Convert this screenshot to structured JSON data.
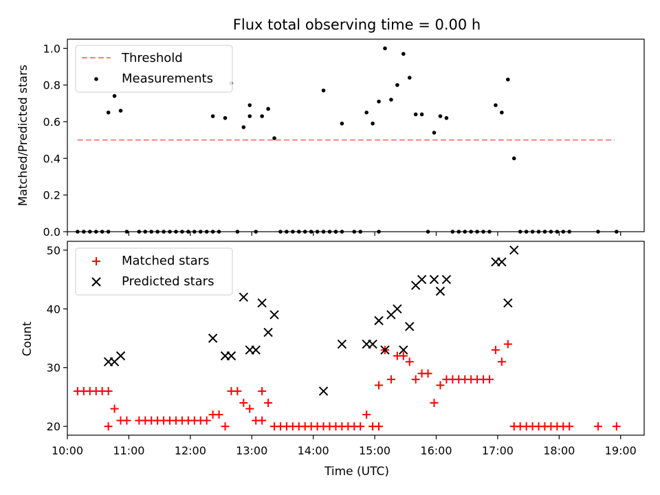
{
  "chart_data": [
    {
      "type": "scatter",
      "title": "Flux total observing time = 0.00 h",
      "xlabel": "",
      "ylabel": "Matched/Predicted stars",
      "xlim": [
        "10:00",
        "19:23"
      ],
      "ylim": [
        0,
        1.05
      ],
      "yticks": [
        0.0,
        0.2,
        0.4,
        0.6,
        0.8,
        1.0
      ],
      "ytick_labels": [
        "0.0",
        "0.2",
        "0.4",
        "0.6",
        "0.8",
        "1.0"
      ],
      "legend_position": "upper-left",
      "grid": false,
      "threshold": {
        "name": "Threshold",
        "y": 0.5,
        "x_range": [
          "10:10",
          "18:54"
        ],
        "color": "#ff7f7f",
        "style": "dashed"
      },
      "series": [
        {
          "name": "Measurements",
          "color": "#000000",
          "marker": "dot",
          "points": [
            [
              "10:10",
              0
            ],
            [
              "10:16",
              0
            ],
            [
              "10:22",
              0
            ],
            [
              "10:28",
              0
            ],
            [
              "10:34",
              0
            ],
            [
              "10:40",
              0
            ],
            [
              "10:40",
              0.65
            ],
            [
              "10:46",
              0.74
            ],
            [
              "10:52",
              0.66
            ],
            [
              "10:58",
              0
            ],
            [
              "11:10",
              0
            ],
            [
              "11:16",
              0
            ],
            [
              "11:22",
              0
            ],
            [
              "11:28",
              0
            ],
            [
              "11:34",
              0
            ],
            [
              "11:40",
              0
            ],
            [
              "11:46",
              0
            ],
            [
              "11:52",
              0
            ],
            [
              "11:58",
              0
            ],
            [
              "12:04",
              0
            ],
            [
              "12:10",
              0
            ],
            [
              "12:16",
              0
            ],
            [
              "12:22",
              0
            ],
            [
              "12:22",
              0.63
            ],
            [
              "12:28",
              0
            ],
            [
              "12:34",
              0.62
            ],
            [
              "12:40",
              0.81
            ],
            [
              "12:46",
              0
            ],
            [
              "12:52",
              0.57
            ],
            [
              "12:58",
              0.69
            ],
            [
              "12:58",
              0.63
            ],
            [
              "13:04",
              0
            ],
            [
              "13:10",
              0.63
            ],
            [
              "13:16",
              0.67
            ],
            [
              "13:22",
              0.51
            ],
            [
              "13:28",
              0
            ],
            [
              "13:34",
              0
            ],
            [
              "13:40",
              0
            ],
            [
              "13:46",
              0
            ],
            [
              "13:52",
              0
            ],
            [
              "13:58",
              0
            ],
            [
              "14:04",
              0
            ],
            [
              "14:10",
              0
            ],
            [
              "14:16",
              0
            ],
            [
              "14:22",
              0
            ],
            [
              "14:10",
              0.77
            ],
            [
              "14:22",
              0
            ],
            [
              "14:28",
              0
            ],
            [
              "14:28",
              0.59
            ],
            [
              "14:40",
              0
            ],
            [
              "14:46",
              0
            ],
            [
              "14:52",
              0.65
            ],
            [
              "14:58",
              0.59
            ],
            [
              "15:04",
              0
            ],
            [
              "15:04",
              0.71
            ],
            [
              "15:10",
              1.0
            ],
            [
              "15:16",
              0.72
            ],
            [
              "15:22",
              0.8
            ],
            [
              "15:28",
              0.97
            ],
            [
              "15:34",
              0.84
            ],
            [
              "15:40",
              0.64
            ],
            [
              "15:46",
              0.64
            ],
            [
              "15:52",
              0
            ],
            [
              "15:58",
              0.54
            ],
            [
              "16:04",
              0.63
            ],
            [
              "16:10",
              0.62
            ],
            [
              "16:16",
              0
            ],
            [
              "16:22",
              0
            ],
            [
              "16:28",
              0
            ],
            [
              "16:34",
              0
            ],
            [
              "16:40",
              0
            ],
            [
              "16:46",
              0
            ],
            [
              "16:52",
              0
            ],
            [
              "16:58",
              0.69
            ],
            [
              "17:04",
              0.65
            ],
            [
              "17:10",
              0.83
            ],
            [
              "17:16",
              0.4
            ],
            [
              "17:22",
              0
            ],
            [
              "17:28",
              0
            ],
            [
              "17:34",
              0
            ],
            [
              "17:40",
              0
            ],
            [
              "17:46",
              0
            ],
            [
              "17:52",
              0
            ],
            [
              "17:58",
              0
            ],
            [
              "18:04",
              0
            ],
            [
              "18:10",
              0
            ],
            [
              "18:38",
              0
            ],
            [
              "18:56",
              0
            ]
          ]
        }
      ]
    },
    {
      "type": "scatter",
      "title": "",
      "xlabel": "Time (UTC)",
      "ylabel": "Count",
      "xlim": [
        "10:00",
        "19:23"
      ],
      "ylim": [
        18.5,
        51.5
      ],
      "yticks": [
        20,
        30,
        40,
        50
      ],
      "xticks": [
        "10:00",
        "11:00",
        "12:00",
        "13:00",
        "14:00",
        "15:00",
        "16:00",
        "17:00",
        "18:00",
        "19:00"
      ],
      "legend_position": "upper-left",
      "grid": false,
      "series": [
        {
          "name": "Matched stars",
          "color": "#ff0000",
          "marker": "plus",
          "points": [
            [
              "10:10",
              26
            ],
            [
              "10:16",
              26
            ],
            [
              "10:22",
              26
            ],
            [
              "10:28",
              26
            ],
            [
              "10:34",
              26
            ],
            [
              "10:40",
              26
            ],
            [
              "10:40",
              20
            ],
            [
              "10:46",
              23
            ],
            [
              "10:52",
              21
            ],
            [
              "10:58",
              21
            ],
            [
              "11:10",
              21
            ],
            [
              "11:16",
              21
            ],
            [
              "11:22",
              21
            ],
            [
              "11:28",
              21
            ],
            [
              "11:34",
              21
            ],
            [
              "11:40",
              21
            ],
            [
              "11:46",
              21
            ],
            [
              "11:52",
              21
            ],
            [
              "11:58",
              21
            ],
            [
              "12:04",
              21
            ],
            [
              "12:10",
              21
            ],
            [
              "12:16",
              21
            ],
            [
              "12:22",
              22
            ],
            [
              "12:28",
              22
            ],
            [
              "12:34",
              20
            ],
            [
              "12:40",
              26
            ],
            [
              "12:46",
              26
            ],
            [
              "12:52",
              24
            ],
            [
              "12:58",
              23
            ],
            [
              "13:04",
              21
            ],
            [
              "13:10",
              21
            ],
            [
              "13:10",
              26
            ],
            [
              "13:16",
              24
            ],
            [
              "13:22",
              20
            ],
            [
              "13:28",
              20
            ],
            [
              "13:34",
              20
            ],
            [
              "13:40",
              20
            ],
            [
              "13:46",
              20
            ],
            [
              "13:52",
              20
            ],
            [
              "13:58",
              20
            ],
            [
              "14:04",
              20
            ],
            [
              "14:10",
              20
            ],
            [
              "14:16",
              20
            ],
            [
              "14:22",
              20
            ],
            [
              "14:28",
              20
            ],
            [
              "14:34",
              20
            ],
            [
              "14:40",
              20
            ],
            [
              "14:46",
              20
            ],
            [
              "14:52",
              22
            ],
            [
              "14:58",
              20
            ],
            [
              "15:04",
              20
            ],
            [
              "15:04",
              27
            ],
            [
              "15:10",
              33
            ],
            [
              "15:16",
              28
            ],
            [
              "15:22",
              32
            ],
            [
              "15:28",
              32
            ],
            [
              "15:34",
              31
            ],
            [
              "15:40",
              28
            ],
            [
              "15:46",
              29
            ],
            [
              "15:52",
              29
            ],
            [
              "15:58",
              24
            ],
            [
              "16:04",
              27
            ],
            [
              "16:10",
              28
            ],
            [
              "16:16",
              28
            ],
            [
              "16:22",
              28
            ],
            [
              "16:28",
              28
            ],
            [
              "16:34",
              28
            ],
            [
              "16:40",
              28
            ],
            [
              "16:46",
              28
            ],
            [
              "16:52",
              28
            ],
            [
              "16:58",
              33
            ],
            [
              "17:04",
              31
            ],
            [
              "17:10",
              34
            ],
            [
              "17:16",
              20
            ],
            [
              "17:22",
              20
            ],
            [
              "17:28",
              20
            ],
            [
              "17:34",
              20
            ],
            [
              "17:40",
              20
            ],
            [
              "17:46",
              20
            ],
            [
              "17:52",
              20
            ],
            [
              "17:58",
              20
            ],
            [
              "18:04",
              20
            ],
            [
              "18:10",
              20
            ],
            [
              "18:38",
              20
            ],
            [
              "18:56",
              20
            ]
          ]
        },
        {
          "name": "Predicted stars",
          "color": "#000000",
          "marker": "x",
          "points": [
            [
              "10:40",
              31
            ],
            [
              "10:46",
              31
            ],
            [
              "10:52",
              32
            ],
            [
              "12:22",
              35
            ],
            [
              "12:34",
              32
            ],
            [
              "12:40",
              32
            ],
            [
              "12:52",
              42
            ],
            [
              "12:58",
              33
            ],
            [
              "13:04",
              33
            ],
            [
              "13:10",
              41
            ],
            [
              "13:16",
              36
            ],
            [
              "13:22",
              39
            ],
            [
              "14:10",
              26
            ],
            [
              "14:28",
              34
            ],
            [
              "14:52",
              34
            ],
            [
              "14:58",
              34
            ],
            [
              "15:04",
              38
            ],
            [
              "15:10",
              33
            ],
            [
              "15:16",
              39
            ],
            [
              "15:22",
              40
            ],
            [
              "15:28",
              33
            ],
            [
              "15:34",
              37
            ],
            [
              "15:40",
              44
            ],
            [
              "15:46",
              45
            ],
            [
              "15:58",
              45
            ],
            [
              "16:04",
              43
            ],
            [
              "16:10",
              45
            ],
            [
              "16:58",
              48
            ],
            [
              "17:04",
              48
            ],
            [
              "17:10",
              41
            ],
            [
              "17:16",
              50
            ]
          ]
        }
      ]
    }
  ]
}
